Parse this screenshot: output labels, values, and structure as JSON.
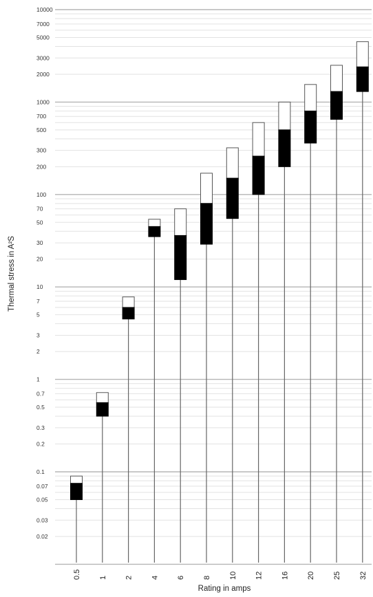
{
  "chart_data": {
    "type": "bar",
    "title": "",
    "xlabel": "Rating in amps",
    "ylabel": "Thermal stress in A²S",
    "yscale": "log",
    "ylim": [
      0.01,
      10000
    ],
    "grid": true,
    "legend": "none",
    "categories": [
      "0.5",
      "1",
      "2",
      "4",
      "6",
      "8",
      "10",
      "12",
      "16",
      "20",
      "25",
      "32"
    ],
    "y_tick_labels": [
      {
        "value": 10000,
        "label": "10000"
      },
      {
        "value": 7000,
        "label": "7000"
      },
      {
        "value": 5000,
        "label": "5000"
      },
      {
        "value": 3000,
        "label": "3000"
      },
      {
        "value": 2000,
        "label": "2000"
      },
      {
        "value": 1000,
        "label": "1000"
      },
      {
        "value": 700,
        "label": "700"
      },
      {
        "value": 500,
        "label": "500"
      },
      {
        "value": 300,
        "label": "300"
      },
      {
        "value": 200,
        "label": "200"
      },
      {
        "value": 100,
        "label": "100"
      },
      {
        "value": 70,
        "label": "70"
      },
      {
        "value": 50,
        "label": "50"
      },
      {
        "value": 30,
        "label": "30"
      },
      {
        "value": 20,
        "label": "20"
      },
      {
        "value": 10,
        "label": "10"
      },
      {
        "value": 7,
        "label": "7"
      },
      {
        "value": 5,
        "label": "5"
      },
      {
        "value": 3,
        "label": "3"
      },
      {
        "value": 2,
        "label": "2"
      },
      {
        "value": 1,
        "label": "1"
      },
      {
        "value": 0.7,
        "label": "0.7"
      },
      {
        "value": 0.5,
        "label": "0.5"
      },
      {
        "value": 0.3,
        "label": "0.3"
      },
      {
        "value": 0.2,
        "label": "0.2"
      },
      {
        "value": 0.1,
        "label": "0.1"
      },
      {
        "value": 0.07,
        "label": "0.07"
      },
      {
        "value": 0.05,
        "label": "0.05"
      },
      {
        "value": 0.03,
        "label": "0.03"
      },
      {
        "value": 0.02,
        "label": "0.02"
      }
    ],
    "series": [
      {
        "values_low": [
          0.05,
          0.4,
          4.5,
          35,
          12,
          29,
          55,
          100,
          200,
          360,
          650,
          1300
        ]
      },
      {
        "values_mid": [
          0.075,
          0.56,
          6,
          45,
          36,
          80,
          150,
          260,
          500,
          800,
          1300,
          2400
        ]
      },
      {
        "values_high": [
          0.09,
          0.72,
          7.8,
          54,
          70,
          170,
          320,
          600,
          1000,
          1550,
          2500,
          4500
        ]
      }
    ],
    "colors": {
      "melting": "#000000",
      "arcing": "#ffffff",
      "outline": "#555555",
      "stem": "#666666"
    }
  }
}
